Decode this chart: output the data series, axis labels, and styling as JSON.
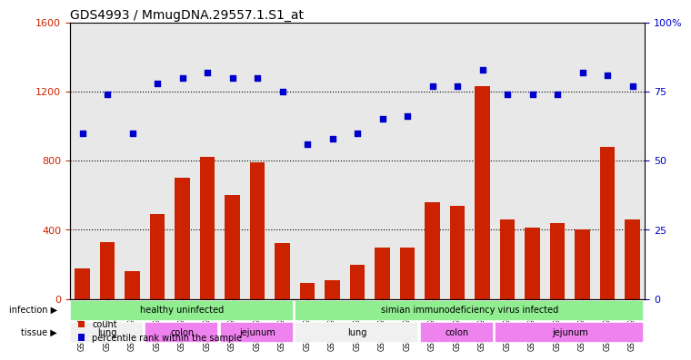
{
  "title": "GDS4993 / MmugDNA.29557.1.S1_at",
  "samples": [
    "GSM1249391",
    "GSM1249392",
    "GSM1249393",
    "GSM1249369",
    "GSM1249370",
    "GSM1249371",
    "GSM1249380",
    "GSM1249381",
    "GSM1249382",
    "GSM1249386",
    "GSM1249387",
    "GSM1249388",
    "GSM1249389",
    "GSM1249390",
    "GSM1249365",
    "GSM1249366",
    "GSM1249367",
    "GSM1249368",
    "GSM1249375",
    "GSM1249376",
    "GSM1249377",
    "GSM1249378",
    "GSM1249379"
  ],
  "counts": [
    175,
    330,
    160,
    490,
    700,
    820,
    600,
    790,
    325,
    90,
    110,
    200,
    295,
    295,
    560,
    540,
    1230,
    460,
    410,
    440,
    400,
    880,
    460
  ],
  "percentiles": [
    60,
    74,
    60,
    78,
    80,
    82,
    80,
    80,
    75,
    56,
    58,
    60,
    65,
    66,
    77,
    77,
    83,
    74,
    74,
    74,
    82,
    81,
    77
  ],
  "infection_groups": [
    {
      "label": "healthy uninfected",
      "start": 0,
      "end": 9,
      "color": "#90EE90"
    },
    {
      "label": "simian immunodeficiency virus infected",
      "start": 9,
      "end": 23,
      "color": "#90EE90"
    }
  ],
  "tissue_groups": [
    {
      "label": "lung",
      "start": 0,
      "end": 3,
      "color": "#ffffff"
    },
    {
      "label": "colon",
      "start": 3,
      "end": 6,
      "color": "#EE82EE"
    },
    {
      "label": "jejunum",
      "start": 6,
      "end": 9,
      "color": "#EE82EE"
    },
    {
      "label": "lung",
      "start": 9,
      "end": 14,
      "color": "#ffffff"
    },
    {
      "label": "colon",
      "start": 14,
      "end": 17,
      "color": "#EE82EE"
    },
    {
      "label": "jejunum",
      "start": 17,
      "end": 23,
      "color": "#EE82EE"
    }
  ],
  "bar_color": "#CC2200",
  "dot_color": "#0000CC",
  "left_ylim": [
    0,
    1600
  ],
  "left_yticks": [
    0,
    400,
    800,
    1200,
    1600
  ],
  "right_ylim": [
    0,
    100
  ],
  "right_yticks": [
    0,
    25,
    50,
    75,
    100
  ],
  "grid_color": "#000000",
  "bg_color": "#ffffff",
  "plot_bg_color": "#e8e8e8"
}
